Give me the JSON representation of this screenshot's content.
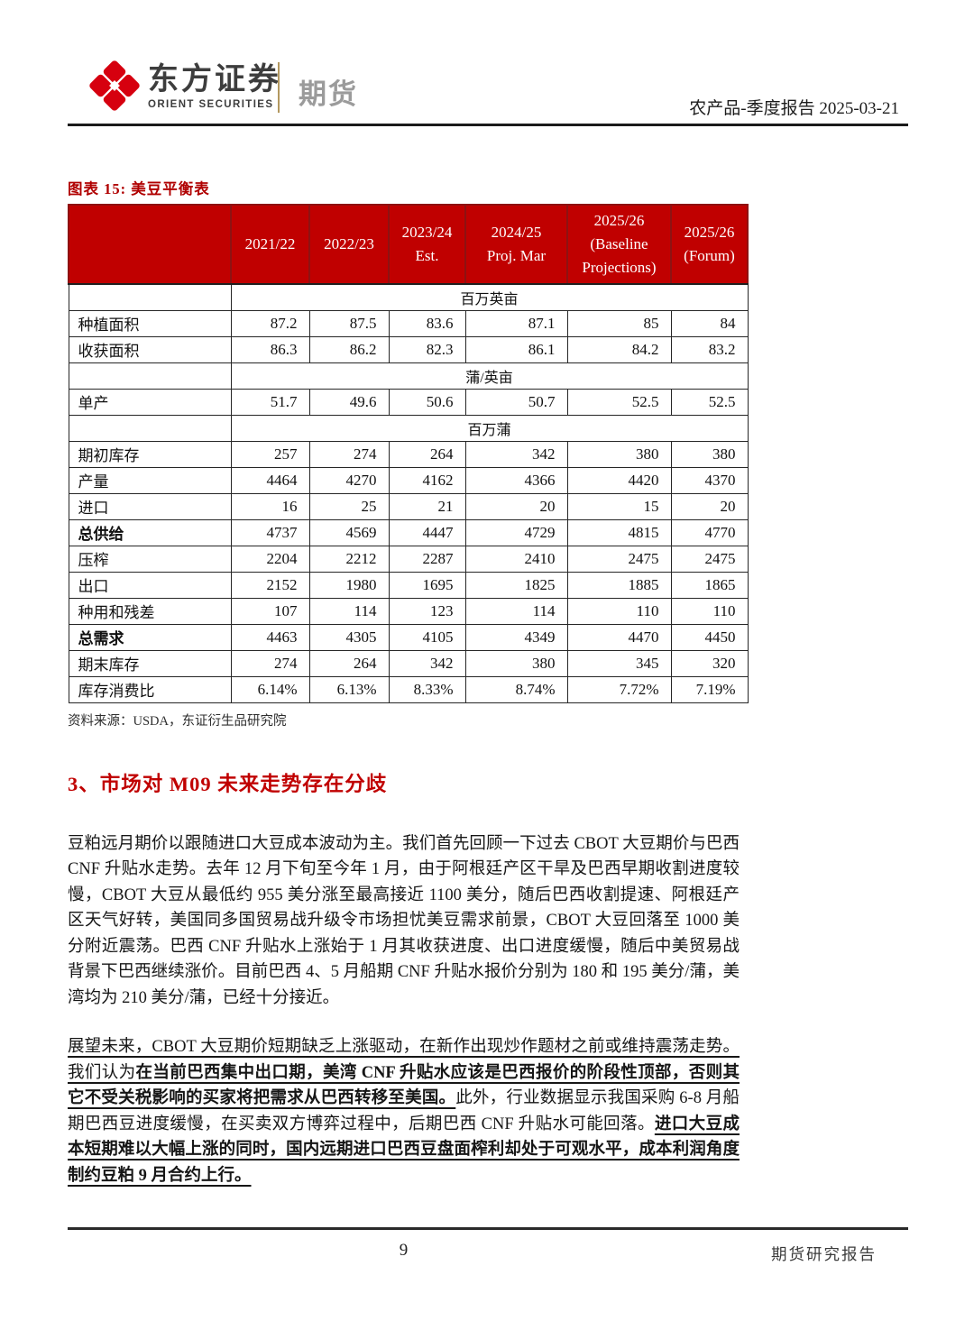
{
  "brand": {
    "name_cn": "东方证券",
    "name_en": "ORIENT SECURITIES",
    "division": "期货"
  },
  "meta": {
    "report_label": "农产品-季度报告 2025-03-21"
  },
  "figure": {
    "title": "图表 15: 美豆平衡表",
    "source": "资料来源：USDA，东证衍生品研究院",
    "table": {
      "columns": [
        [
          ""
        ],
        [
          "2021/22"
        ],
        [
          "2022/23"
        ],
        [
          "2023/24",
          "Est."
        ],
        [
          "2024/25",
          "Proj. Mar"
        ],
        [
          "2025/26",
          "(Baseline",
          "Projections)"
        ],
        [
          "2025/26",
          "(Forum)"
        ]
      ],
      "rows": [
        {
          "type": "unit",
          "label": "百万英亩"
        },
        {
          "type": "data",
          "label": "种植面积",
          "values": [
            "87.2",
            "87.5",
            "83.6",
            "87.1",
            "85",
            "84"
          ]
        },
        {
          "type": "data",
          "label": "收获面积",
          "values": [
            "86.3",
            "86.2",
            "82.3",
            "86.1",
            "84.2",
            "83.2"
          ]
        },
        {
          "type": "unit",
          "label": "蒲/英亩"
        },
        {
          "type": "data",
          "label": "单产",
          "values": [
            "51.7",
            "49.6",
            "50.6",
            "50.7",
            "52.5",
            "52.5"
          ]
        },
        {
          "type": "unit",
          "label": "百万蒲"
        },
        {
          "type": "data",
          "label": "期初库存",
          "values": [
            "257",
            "274",
            "264",
            "342",
            "380",
            "380"
          ]
        },
        {
          "type": "data",
          "label": "产量",
          "values": [
            "4464",
            "4270",
            "4162",
            "4366",
            "4420",
            "4370"
          ]
        },
        {
          "type": "data",
          "label": "进口",
          "values": [
            "16",
            "25",
            "21",
            "20",
            "15",
            "20"
          ]
        },
        {
          "type": "data",
          "label": "总供给",
          "bold": true,
          "values": [
            "4737",
            "4569",
            "4447",
            "4729",
            "4815",
            "4770"
          ]
        },
        {
          "type": "data",
          "label": "压榨",
          "values": [
            "2204",
            "2212",
            "2287",
            "2410",
            "2475",
            "2475"
          ]
        },
        {
          "type": "data",
          "label": "出口",
          "values": [
            "2152",
            "1980",
            "1695",
            "1825",
            "1885",
            "1865"
          ]
        },
        {
          "type": "data",
          "label": "种用和残差",
          "values": [
            "107",
            "114",
            "123",
            "114",
            "110",
            "110"
          ]
        },
        {
          "type": "data",
          "label": "总需求",
          "bold": true,
          "values": [
            "4463",
            "4305",
            "4105",
            "4349",
            "4470",
            "4450"
          ]
        },
        {
          "type": "data",
          "label": "期末库存",
          "values": [
            "274",
            "264",
            "342",
            "380",
            "345",
            "320"
          ]
        },
        {
          "type": "data",
          "label": "库存消费比",
          "values": [
            "6.14%",
            "6.13%",
            "8.33%",
            "8.74%",
            "7.72%",
            "7.19%"
          ]
        }
      ]
    }
  },
  "section": {
    "heading": "3、市场对 M09 未来走势存在分歧"
  },
  "body": {
    "p1": "豆粕远月期价以跟随进口大豆成本波动为主。我们首先回顾一下过去 CBOT 大豆期价与巴西 CNF 升贴水走势。去年 12 月下旬至今年 1 月，由于阿根廷产区干旱及巴西早期收割进度较慢，CBOT 大豆从最低约 955 美分涨至最高接近 1100 美分，随后巴西收割提速、阿根廷产区天气好转，美国同多国贸易战升级令市场担忧美豆需求前景，CBOT 大豆回落至 1000 美分附近震荡。巴西 CNF 升贴水上涨始于 1 月其收获进度、出口进度缓慢，随后中美贸易战背景下巴西继续涨价。目前巴西 4、5 月船期 CNF 升贴水报价分别为 180 和 195 美分/蒲，美湾均为 210 美分/蒲，已经十分接近。",
    "p2_runs": [
      {
        "text": "展望未来，CBOT 大豆期价短期缺乏上涨驱动，在新作出现炒作题材之前或维持震荡走势。",
        "style": "u"
      },
      {
        "text": "我们认为",
        "style": "u"
      },
      {
        "text": "在当前巴西集中出口期，美湾 CNF 升贴水应该是巴西报价的阶段性顶部，否则其它不受关税影响的买家将把需求从巴西转移至美国。",
        "style": "bu"
      },
      {
        "text": "此外，行业数据显示我国采购 6-8 月船期巴西豆进度缓慢，在买卖双方博弈过程中，后期巴西 CNF 升贴水可能回落。",
        "style": "plain"
      },
      {
        "text": "进口大豆成本短期难以大幅上涨的同时，国内远期进口巴西豆盘面榨利却处于可观水平，成本利润角度制约豆粕 9 月合约上行。",
        "style": "bu"
      }
    ]
  },
  "footer": {
    "page_number": "9",
    "label": "期货研究报告"
  },
  "colors": {
    "table_header_red": "#c00000",
    "figure_title_red": "#b00000",
    "heading_red": "#c00000",
    "logo_red": "#d6000f",
    "brand_divider_gold": "#b3985f"
  }
}
